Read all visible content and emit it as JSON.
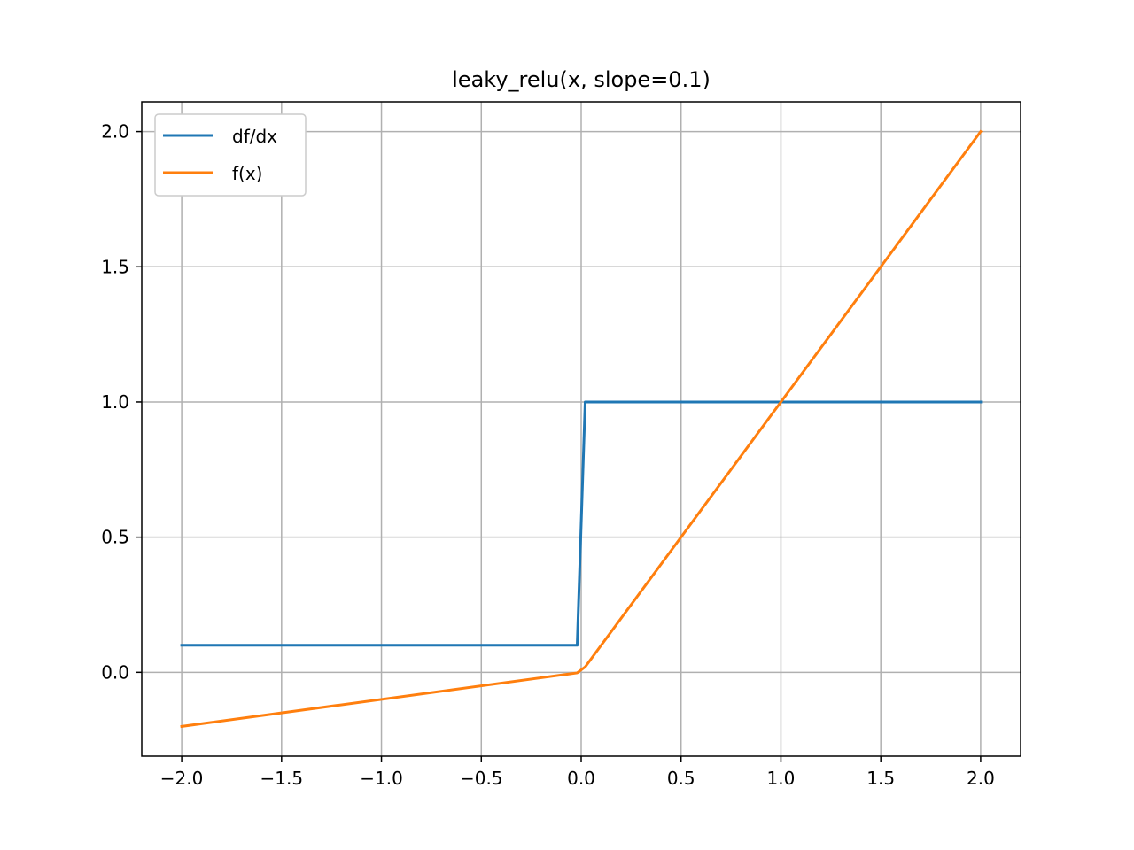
{
  "chart_data": {
    "type": "line",
    "title": "leaky_relu(x, slope=0.1)",
    "xlabel": "",
    "ylabel": "",
    "xlim": [
      -2.2,
      2.2
    ],
    "ylim": [
      -0.31,
      2.11
    ],
    "xticks": [
      -2.0,
      -1.5,
      -1.0,
      -0.5,
      0.0,
      0.5,
      1.0,
      1.5,
      2.0
    ],
    "xtick_labels": [
      "−2.0",
      "−1.5",
      "−1.0",
      "−0.5",
      "0.0",
      "0.5",
      "1.0",
      "1.5",
      "2.0"
    ],
    "yticks": [
      0.0,
      0.5,
      1.0,
      1.5,
      2.0
    ],
    "ytick_labels": [
      "0.0",
      "0.5",
      "1.0",
      "1.5",
      "2.0"
    ],
    "grid": true,
    "legend_placement": "upper-left",
    "series": [
      {
        "name": "df/dx",
        "color": "#1f77b4",
        "x": [
          -2.0,
          -0.02,
          0.02,
          2.0
        ],
        "y": [
          0.1,
          0.1,
          1.0,
          1.0
        ]
      },
      {
        "name": "f(x)",
        "color": "#ff7f0e",
        "x": [
          -2.0,
          -0.02,
          0.02,
          2.0
        ],
        "y": [
          -0.2,
          -0.002,
          0.02,
          2.0
        ]
      }
    ]
  }
}
